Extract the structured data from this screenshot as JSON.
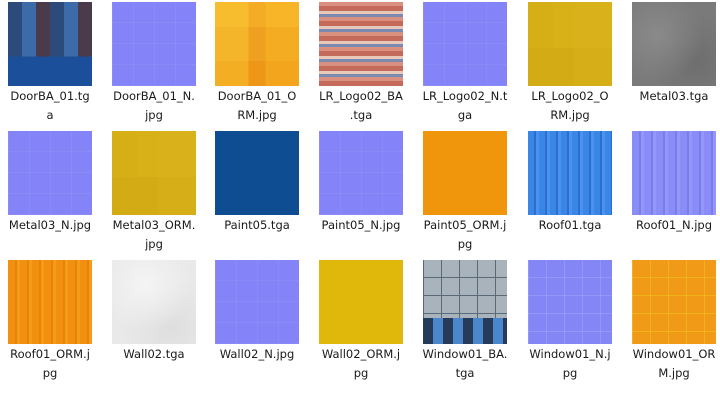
{
  "files": [
    {
      "name_line1": "DoorBA_01.tg",
      "name_line2": "a",
      "thumb": "door-texture"
    },
    {
      "name_line1": "DoorBA_01_N.",
      "name_line2": "jpg",
      "thumb": "normal-map"
    },
    {
      "name_line1": "DoorBA_01_O",
      "name_line2": "RM.jpg",
      "thumb": "orm-orange"
    },
    {
      "name_line1": "LR_Logo02_BA",
      "name_line2": ".tga",
      "thumb": "logo-texture"
    },
    {
      "name_line1": "LR_Logo02_N.t",
      "name_line2": "ga",
      "thumb": "normal-map"
    },
    {
      "name_line1": "LR_Logo02_O",
      "name_line2": "RM.jpg",
      "thumb": "orm-yellow"
    },
    {
      "name_line1": "Metal03.tga",
      "name_line2": "",
      "thumb": "metal-gray"
    },
    {
      "name_line1": "Metal03_N.jpg",
      "name_line2": "",
      "thumb": "normal-map"
    },
    {
      "name_line1": "Metal03_ORM.",
      "name_line2": "jpg",
      "thumb": "orm-yellow"
    },
    {
      "name_line1": "Paint05.tga",
      "name_line2": "",
      "thumb": "paint-blue"
    },
    {
      "name_line1": "Paint05_N.jpg",
      "name_line2": "",
      "thumb": "normal-map"
    },
    {
      "name_line1": "Paint05_ORM.j",
      "name_line2": "pg",
      "thumb": "orange-flat"
    },
    {
      "name_line1": "Roof01.tga",
      "name_line2": "",
      "thumb": "roof-blue"
    },
    {
      "name_line1": "Roof01_N.jpg",
      "name_line2": "",
      "thumb": "roof-normal"
    },
    {
      "name_line1": "Roof01_ORM.j",
      "name_line2": "pg",
      "thumb": "roof-orm"
    },
    {
      "name_line1": "Wall02.tga",
      "name_line2": "",
      "thumb": "wall-white"
    },
    {
      "name_line1": "Wall02_N.jpg",
      "name_line2": "",
      "thumb": "normal-map"
    },
    {
      "name_line1": "Wall02_ORM.j",
      "name_line2": "pg",
      "thumb": "wall-yellow"
    },
    {
      "name_line1": "Window01_BA.",
      "name_line2": "tga",
      "thumb": "window-texture"
    },
    {
      "name_line1": "Window01_N.j",
      "name_line2": "pg",
      "thumb": "window-normal"
    },
    {
      "name_line1": "Window01_OR",
      "name_line2": "M.jpg",
      "thumb": "window-orm"
    }
  ]
}
